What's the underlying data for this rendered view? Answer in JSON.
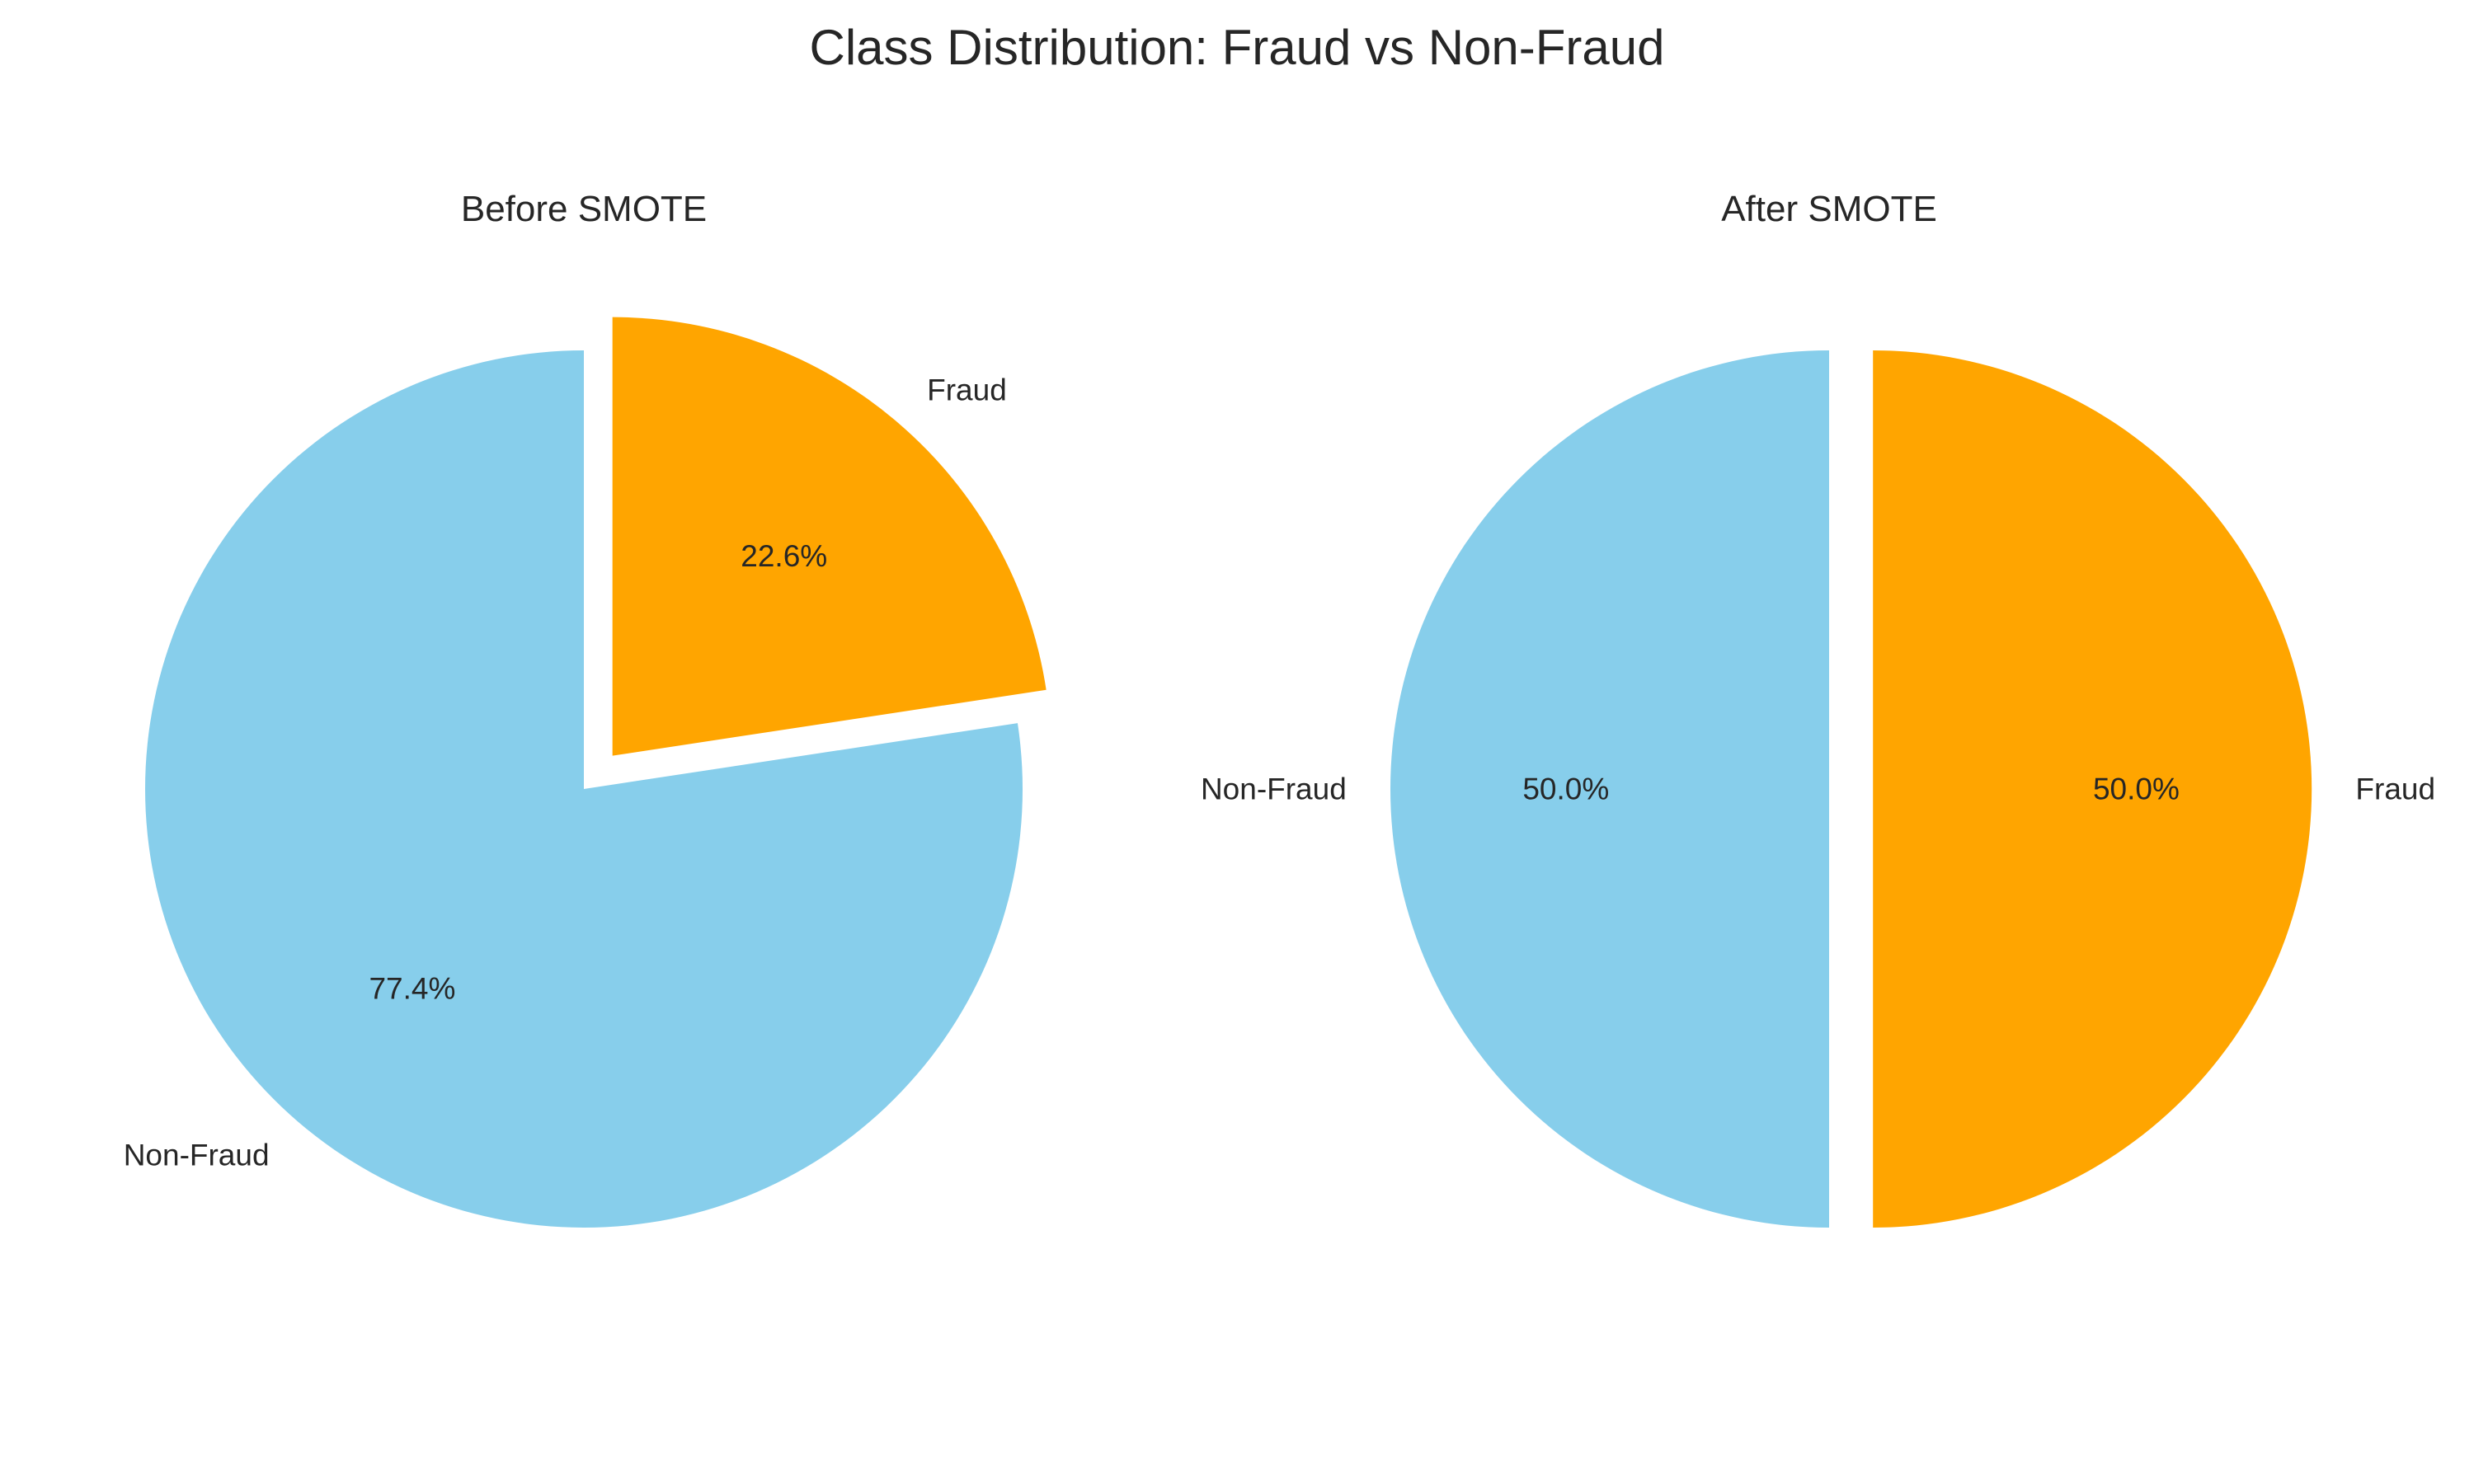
{
  "figure": {
    "title": "Class Distribution: Fraud vs Non-Fraud"
  },
  "colors": {
    "non_fraud": "#87CEEB",
    "fraud": "#FFA500",
    "text": "#262626",
    "background": "#FFFFFF"
  },
  "chart_data": [
    {
      "type": "pie",
      "title": "Before SMOTE",
      "start_angle_deg": 90,
      "counterclockwise": false,
      "slices": [
        {
          "label": "Fraud",
          "value": 22.6,
          "pct_label": "22.6%",
          "color": "#FFA500",
          "exploded": true
        },
        {
          "label": "Non-Fraud",
          "value": 77.4,
          "pct_label": "77.4%",
          "color": "#87CEEB",
          "exploded": false
        }
      ]
    },
    {
      "type": "pie",
      "title": "After SMOTE",
      "start_angle_deg": 90,
      "counterclockwise": false,
      "slices": [
        {
          "label": "Fraud",
          "value": 50.0,
          "pct_label": "50.0%",
          "color": "#FFA500",
          "exploded": true
        },
        {
          "label": "Non-Fraud",
          "value": 50.0,
          "pct_label": "50.0%",
          "color": "#87CEEB",
          "exploded": false
        }
      ]
    }
  ]
}
